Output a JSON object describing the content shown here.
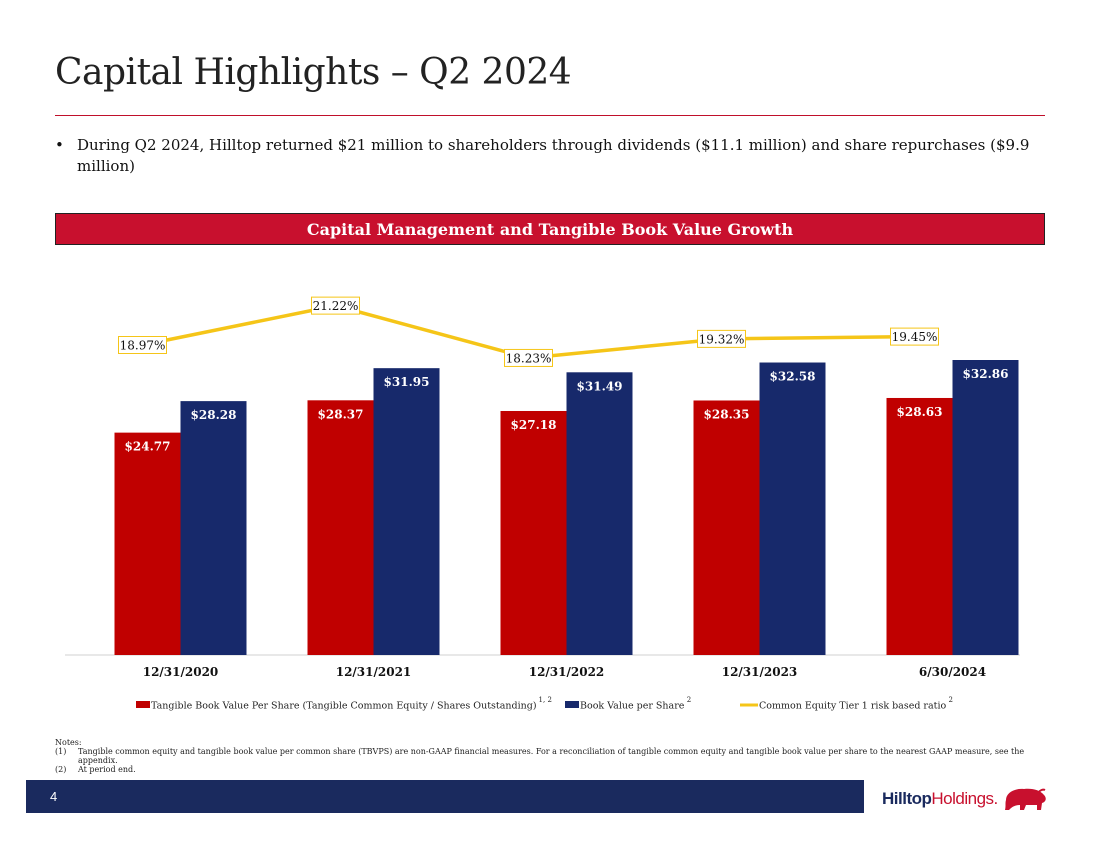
{
  "title": "Capital Highlights – Q2 2024",
  "bullet": {
    "marker": "•",
    "text": "During Q2 2024, Hilltop returned $21 million to shareholders through dividends ($11.1 million) and share repurchases ($9.9 million)"
  },
  "section_header": "Capital Management and Tangible Book Value Growth",
  "colors": {
    "accent_red": "#c8102e",
    "bar_red": "#c00000",
    "bar_navy": "#17296b",
    "line_gold": "#f5c518",
    "footer_navy": "#1a2a5e"
  },
  "chart_data": {
    "type": "bar",
    "title": "Capital Management and Tangible Book Value Growth",
    "categories": [
      "12/31/2020",
      "12/31/2021",
      "12/31/2022",
      "12/31/2023",
      "6/30/2024"
    ],
    "series": [
      {
        "name": "Tangible Book Value Per Share (Tangible Common Equity / Shares Outstanding)",
        "superscript": "1, 2",
        "kind": "bar",
        "color": "#c00000",
        "values": [
          24.77,
          28.37,
          27.18,
          28.35,
          28.63
        ],
        "labels": [
          "$24.77",
          "$28.37",
          "$27.18",
          "$28.35",
          "$28.63"
        ]
      },
      {
        "name": "Book Value per Share",
        "superscript": "2",
        "kind": "bar",
        "color": "#17296b",
        "values": [
          28.28,
          31.95,
          31.49,
          32.58,
          32.86
        ],
        "labels": [
          "$28.28",
          "$31.95",
          "$31.49",
          "$32.58",
          "$32.86"
        ]
      },
      {
        "name": "Common Equity Tier 1 risk based ratio",
        "superscript": "2",
        "kind": "line",
        "color": "#f5c518",
        "values": [
          18.97,
          21.22,
          18.23,
          19.32,
          19.45
        ],
        "labels": [
          "18.97%",
          "21.22%",
          "18.23%",
          "19.32%",
          "19.45%"
        ]
      }
    ],
    "ylim_bars": [
      0,
      36
    ],
    "ylim_line": [
      0,
      22
    ],
    "grid": false,
    "legend_position": "bottom"
  },
  "notes": {
    "heading": "Notes:",
    "items": [
      {
        "num": "(1)",
        "text": "Tangible common equity and tangible book value per common share (TBVPS) are non-GAAP financial measures. For a reconciliation of tangible common equity and tangible book value per share to the nearest GAAP measure, see the appendix."
      },
      {
        "num": "(2)",
        "text": "At period end."
      }
    ]
  },
  "footer": {
    "page_number": "4",
    "logo_bold": "Hilltop",
    "logo_light": "Holdings."
  }
}
